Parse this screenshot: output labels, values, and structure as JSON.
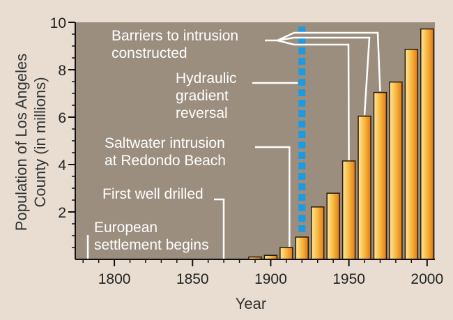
{
  "chart_data": {
    "type": "bar",
    "title": "",
    "xlabel": "Year",
    "ylabel_lines": [
      "Population of Los Angeles",
      "County (in millions)"
    ],
    "xlim": [
      1775,
      2005
    ],
    "ylim": [
      0,
      10
    ],
    "x_ticks": [
      1800,
      1850,
      1900,
      1950,
      2000
    ],
    "y_ticks": [
      2,
      4,
      6,
      8,
      10
    ],
    "grid": false,
    "x": [
      1890,
      1900,
      1910,
      1920,
      1930,
      1940,
      1950,
      1960,
      1970,
      1980,
      1990,
      2000
    ],
    "values": [
      0.1,
      0.17,
      0.5,
      0.94,
      2.21,
      2.79,
      4.15,
      6.04,
      7.04,
      7.48,
      8.86,
      9.72
    ],
    "reference_line": {
      "x": 1920,
      "color": "#1e9be0"
    },
    "annotations": [
      {
        "id": "barriers",
        "lines": [
          "Barriers to intrusion",
          "constructed"
        ]
      },
      {
        "id": "hydraulic",
        "lines": [
          "Hydraulic",
          "gradient",
          "reversal"
        ]
      },
      {
        "id": "saltwater",
        "lines": [
          "Saltwater intrusion",
          "at Redondo Beach"
        ]
      },
      {
        "id": "first-well",
        "lines": [
          "First well drilled"
        ]
      },
      {
        "id": "european",
        "lines": [
          "European",
          "settlement begins"
        ]
      }
    ],
    "colors": {
      "plot_bg": "#9b8e7e",
      "bar_light": "#fce08a",
      "bar_dark": "#e8801a",
      "page_bg": "#e8ddd0"
    }
  }
}
